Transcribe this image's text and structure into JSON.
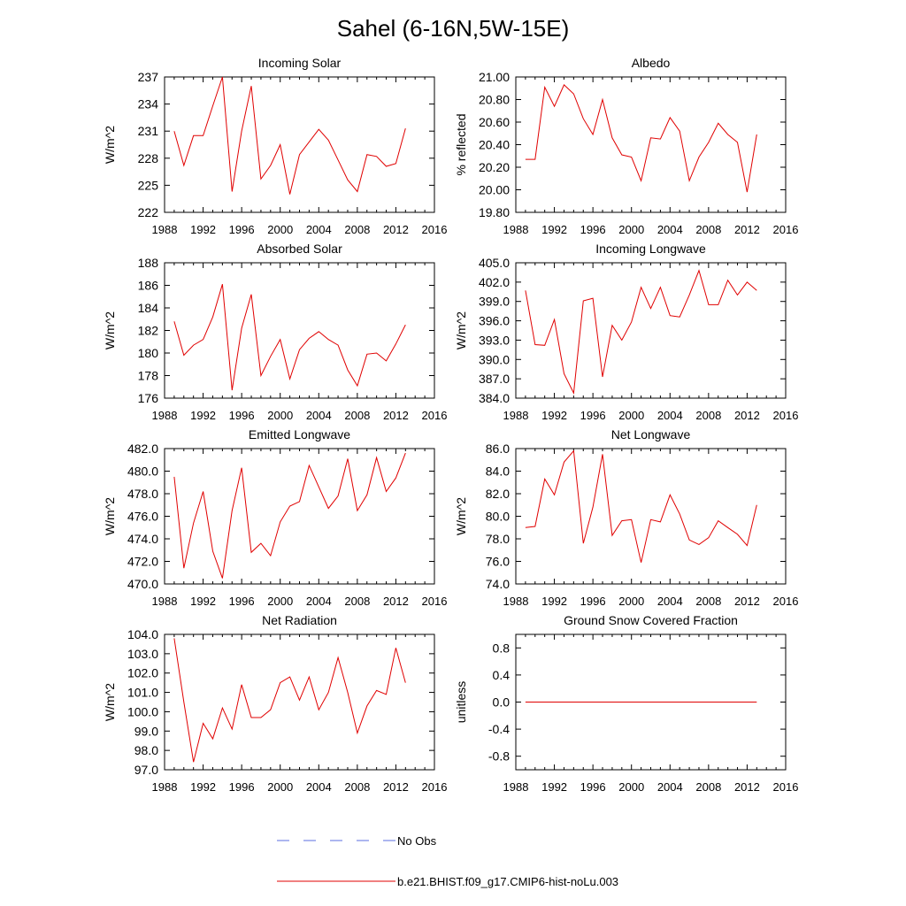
{
  "figure": {
    "title": "Sahel (6-16N,5W-15E)"
  },
  "legend": {
    "items": [
      {
        "label": "No Obs",
        "color": "#5b6ee1",
        "style": "dashed"
      },
      {
        "label": "b.e21.BHIST.f09_g17.CMIP6-hist-noLu.003",
        "color": "#e00000",
        "style": "solid"
      }
    ]
  },
  "colors": {
    "model_line": "#e00000",
    "obs_line": "#5b6ee1"
  },
  "chart_data": [
    {
      "type": "line",
      "title": "Incoming Solar",
      "ylabel": "W/m^2",
      "xlabel": "",
      "xlim": [
        1988,
        2016
      ],
      "ylim": [
        222,
        237
      ],
      "x_ticks": [
        1988,
        1992,
        1996,
        2000,
        2004,
        2008,
        2012,
        2016
      ],
      "y_ticks": [
        "222",
        "225",
        "228",
        "231",
        "234",
        "237"
      ],
      "series": [
        {
          "name": "b.e21.BHIST.f09_g17.CMIP6-hist-noLu.003",
          "x": [
            1989,
            1990,
            1991,
            1992,
            1993,
            1994,
            1995,
            1996,
            1997,
            1998,
            1999,
            2000,
            2001,
            2002,
            2003,
            2004,
            2005,
            2006,
            2007,
            2008,
            2009,
            2010,
            2011,
            2012,
            2013
          ],
          "values": [
            231.0,
            227.2,
            230.5,
            230.5,
            233.8,
            237.0,
            224.3,
            231.0,
            236.0,
            225.7,
            227.2,
            229.5,
            224.0,
            228.4,
            229.8,
            231.2,
            230.0,
            227.8,
            225.6,
            224.3,
            228.4,
            228.2,
            227.1,
            227.4,
            231.3
          ]
        }
      ]
    },
    {
      "type": "line",
      "title": "Albedo",
      "ylabel": "% reflected",
      "xlabel": "",
      "xlim": [
        1988,
        2016
      ],
      "ylim": [
        19.8,
        21.0
      ],
      "x_ticks": [
        1988,
        1992,
        1996,
        2000,
        2004,
        2008,
        2012,
        2016
      ],
      "y_ticks": [
        "19.80",
        "20.00",
        "20.20",
        "20.40",
        "20.60",
        "20.80",
        "21.00"
      ],
      "series": [
        {
          "name": "b.e21.BHIST.f09_g17.CMIP6-hist-noLu.003",
          "x": [
            1989,
            1990,
            1991,
            1992,
            1993,
            1994,
            1995,
            1996,
            1997,
            1998,
            1999,
            2000,
            2001,
            2002,
            2003,
            2004,
            2005,
            2006,
            2007,
            2008,
            2009,
            2010,
            2011,
            2012,
            2013
          ],
          "values": [
            20.27,
            20.27,
            20.91,
            20.74,
            20.93,
            20.85,
            20.63,
            20.49,
            20.8,
            20.46,
            20.31,
            20.29,
            20.08,
            20.46,
            20.45,
            20.64,
            20.52,
            20.08,
            20.29,
            20.42,
            20.59,
            20.49,
            20.42,
            19.98,
            20.49
          ]
        }
      ]
    },
    {
      "type": "line",
      "title": "Absorbed Solar",
      "ylabel": "W/m^2",
      "xlabel": "",
      "xlim": [
        1988,
        2016
      ],
      "ylim": [
        176,
        188
      ],
      "x_ticks": [
        1988,
        1992,
        1996,
        2000,
        2004,
        2008,
        2012,
        2016
      ],
      "y_ticks": [
        "176",
        "178",
        "180",
        "182",
        "184",
        "186",
        "188"
      ],
      "series": [
        {
          "name": "b.e21.BHIST.f09_g17.CMIP6-hist-noLu.003",
          "x": [
            1989,
            1990,
            1991,
            1992,
            1993,
            1994,
            1995,
            1996,
            1997,
            1998,
            1999,
            2000,
            2001,
            2002,
            2003,
            2004,
            2005,
            2006,
            2007,
            2008,
            2009,
            2010,
            2011,
            2012,
            2013
          ],
          "values": [
            182.8,
            179.8,
            180.7,
            181.2,
            183.2,
            186.1,
            176.7,
            182.2,
            185.2,
            178.0,
            179.7,
            181.2,
            177.7,
            180.3,
            181.3,
            181.9,
            181.2,
            180.7,
            178.5,
            177.1,
            179.9,
            180.0,
            179.3,
            180.8,
            182.5
          ]
        }
      ]
    },
    {
      "type": "line",
      "title": "Incoming Longwave",
      "ylabel": "W/m^2",
      "xlabel": "",
      "xlim": [
        1988,
        2016
      ],
      "ylim": [
        384,
        405
      ],
      "x_ticks": [
        1988,
        1992,
        1996,
        2000,
        2004,
        2008,
        2012,
        2016
      ],
      "y_ticks": [
        "384.0",
        "387.0",
        "390.0",
        "393.0",
        "396.0",
        "399.0",
        "402.0",
        "405.0"
      ],
      "series": [
        {
          "name": "b.e21.BHIST.f09_g17.CMIP6-hist-noLu.003",
          "x": [
            1989,
            1990,
            1991,
            1992,
            1993,
            1994,
            1995,
            1996,
            1997,
            1998,
            1999,
            2000,
            2001,
            2002,
            2003,
            2004,
            2005,
            2006,
            2007,
            2008,
            2009,
            2010,
            2011,
            2012,
            2013
          ],
          "values": [
            400.7,
            392.3,
            392.2,
            396.2,
            387.8,
            384.8,
            399.1,
            399.5,
            387.3,
            395.3,
            393.0,
            395.8,
            401.2,
            397.9,
            401.2,
            396.8,
            396.6,
            400.0,
            403.8,
            398.5,
            398.5,
            402.3,
            400.0,
            402.0,
            400.7
          ]
        }
      ]
    },
    {
      "type": "line",
      "title": "Emitted Longwave",
      "ylabel": "W/m^2",
      "xlabel": "",
      "xlim": [
        1988,
        2016
      ],
      "ylim": [
        470,
        482
      ],
      "x_ticks": [
        1988,
        1992,
        1996,
        2000,
        2004,
        2008,
        2012,
        2016
      ],
      "y_ticks": [
        "470.0",
        "472.0",
        "474.0",
        "476.0",
        "478.0",
        "480.0",
        "482.0"
      ],
      "series": [
        {
          "name": "b.e21.BHIST.f09_g17.CMIP6-hist-noLu.003",
          "x": [
            1989,
            1990,
            1991,
            1992,
            1993,
            1994,
            1995,
            1996,
            1997,
            1998,
            1999,
            2000,
            2001,
            2002,
            2003,
            2004,
            2005,
            2006,
            2007,
            2008,
            2009,
            2010,
            2011,
            2012,
            2013
          ],
          "values": [
            479.5,
            471.4,
            475.4,
            478.2,
            472.9,
            470.5,
            476.5,
            480.3,
            472.8,
            473.6,
            472.5,
            475.5,
            476.9,
            477.3,
            480.5,
            478.6,
            476.7,
            477.8,
            481.1,
            476.5,
            477.9,
            481.2,
            478.2,
            479.4,
            481.6
          ]
        }
      ]
    },
    {
      "type": "line",
      "title": "Net Longwave",
      "ylabel": "W/m^2",
      "xlabel": "",
      "xlim": [
        1988,
        2016
      ],
      "ylim": [
        74,
        86
      ],
      "x_ticks": [
        1988,
        1992,
        1996,
        2000,
        2004,
        2008,
        2012,
        2016
      ],
      "y_ticks": [
        "74.0",
        "76.0",
        "78.0",
        "80.0",
        "82.0",
        "84.0",
        "86.0"
      ],
      "series": [
        {
          "name": "b.e21.BHIST.f09_g17.CMIP6-hist-noLu.003",
          "x": [
            1989,
            1990,
            1991,
            1992,
            1993,
            1994,
            1995,
            1996,
            1997,
            1998,
            1999,
            2000,
            2001,
            2002,
            2003,
            2004,
            2005,
            2006,
            2007,
            2008,
            2009,
            2010,
            2011,
            2012,
            2013
          ],
          "values": [
            79.0,
            79.1,
            83.3,
            81.9,
            84.8,
            85.8,
            77.6,
            80.8,
            85.5,
            78.3,
            79.6,
            79.7,
            75.9,
            79.7,
            79.5,
            81.9,
            80.2,
            77.9,
            77.5,
            78.1,
            79.6,
            79.0,
            78.4,
            77.4,
            81.0
          ]
        }
      ]
    },
    {
      "type": "line",
      "title": "Net Radiation",
      "ylabel": "W/m^2",
      "xlabel": "",
      "xlim": [
        1988,
        2016
      ],
      "ylim": [
        97,
        104
      ],
      "x_ticks": [
        1988,
        1992,
        1996,
        2000,
        2004,
        2008,
        2012,
        2016
      ],
      "y_ticks": [
        "97.0",
        "98.0",
        "99.0",
        "100.0",
        "101.0",
        "102.0",
        "103.0",
        "104.0"
      ],
      "series": [
        {
          "name": "b.e21.BHIST.f09_g17.CMIP6-hist-noLu.003",
          "x": [
            1989,
            1990,
            1991,
            1992,
            1993,
            1994,
            1995,
            1996,
            1997,
            1998,
            1999,
            2000,
            2001,
            2002,
            2003,
            2004,
            2005,
            2006,
            2007,
            2008,
            2009,
            2010,
            2011,
            2012,
            2013
          ],
          "values": [
            103.8,
            100.5,
            97.4,
            99.4,
            98.6,
            100.2,
            99.1,
            101.4,
            99.7,
            99.7,
            100.1,
            101.5,
            101.8,
            100.6,
            101.8,
            100.1,
            101.0,
            102.8,
            101.0,
            98.9,
            100.3,
            101.1,
            100.9,
            103.3,
            101.5
          ]
        }
      ]
    },
    {
      "type": "line",
      "title": "Ground Snow Covered Fraction",
      "ylabel": "unitless",
      "xlabel": "",
      "xlim": [
        1988,
        2016
      ],
      "ylim": [
        -1.0,
        1.0
      ],
      "x_ticks": [
        1988,
        1992,
        1996,
        2000,
        2004,
        2008,
        2012,
        2016
      ],
      "y_ticks": [
        "-0.8",
        "-0.4",
        "0.0",
        "0.4",
        "0.8"
      ],
      "y_tick_values": [
        -0.8,
        -0.4,
        0.0,
        0.4,
        0.8
      ],
      "series": [
        {
          "name": "b.e21.BHIST.f09_g17.CMIP6-hist-noLu.003",
          "x": [
            1989,
            1990,
            1991,
            1992,
            1993,
            1994,
            1995,
            1996,
            1997,
            1998,
            1999,
            2000,
            2001,
            2002,
            2003,
            2004,
            2005,
            2006,
            2007,
            2008,
            2009,
            2010,
            2011,
            2012,
            2013
          ],
          "values": [
            0,
            0,
            0,
            0,
            0,
            0,
            0,
            0,
            0,
            0,
            0,
            0,
            0,
            0,
            0,
            0,
            0,
            0,
            0,
            0,
            0,
            0,
            0,
            0,
            0
          ]
        }
      ]
    }
  ]
}
